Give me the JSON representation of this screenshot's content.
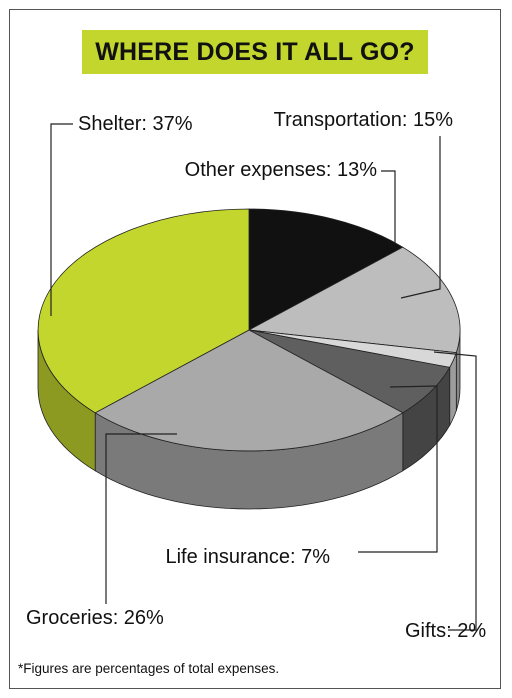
{
  "title": "WHERE DOES IT ALL GO?",
  "footnote": "*Figures are percentages of total expenses.",
  "colors": {
    "accent": "#c2d62e",
    "black": "#111111",
    "light_gray": "#bdbdbd",
    "dark_gray": "#5f5f5f",
    "mid_gray": "#a9a9a9",
    "pale_gray": "#d8d8d8"
  },
  "chart_data": {
    "type": "pie",
    "three_d": true,
    "legend": "none",
    "categories": [
      "Other expenses",
      "Transportation",
      "Gifts",
      "Life insurance",
      "Groceries",
      "Shelter"
    ],
    "values": [
      13,
      15,
      2,
      7,
      26,
      37
    ],
    "labels": [
      "Other expenses: 13%",
      "Transportation: 15%",
      "Gifts: 2%",
      "Life insurance: 7%",
      "Groceries: 26%",
      "Shelter: 37%"
    ]
  }
}
